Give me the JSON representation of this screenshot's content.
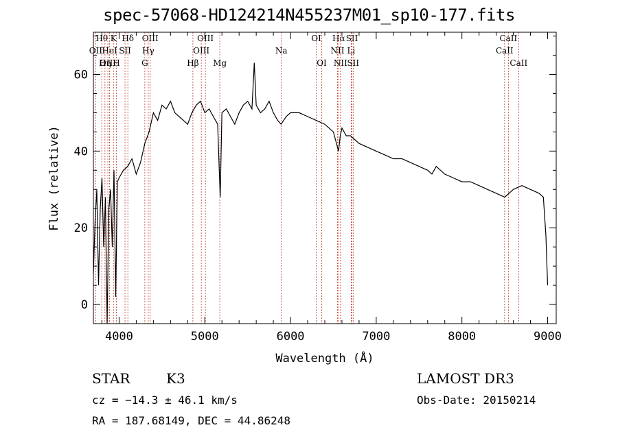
{
  "title": "spec-57068-HD124214N455237M01_sp10-177.fits",
  "info": {
    "object_class": "STAR",
    "subclass": "K3",
    "survey": "LAMOST DR3",
    "redshift": "cz = −14.3 ± 46.1 km/s",
    "obs_date": "Obs-Date: 20150214",
    "coords": "RA = 187.68149, DEC =  44.86248"
  },
  "chart_data": {
    "type": "line",
    "title": "spec-57068-HD124214N455237M01_sp10-177.fits",
    "xlabel": "Wavelength (Å)",
    "ylabel": "Flux (relative)",
    "xlim": [
      3700,
      9100
    ],
    "ylim": [
      -5,
      71
    ],
    "xticks": [
      4000,
      5000,
      6000,
      7000,
      8000,
      9000
    ],
    "yticks": [
      0,
      20,
      40,
      60
    ],
    "grid": false,
    "series": [
      {
        "x": [
          3700,
          3720,
          3740,
          3760,
          3780,
          3800,
          3820,
          3840,
          3860,
          3880,
          3900,
          3920,
          3940,
          3960,
          3980,
          4000,
          4050,
          4100,
          4150,
          4200,
          4250,
          4300,
          4350,
          4400,
          4450,
          4500,
          4550,
          4600,
          4650,
          4700,
          4750,
          4800,
          4850,
          4900,
          4950,
          5000,
          5050,
          5100,
          5150,
          5180,
          5200,
          5250,
          5300,
          5350,
          5400,
          5450,
          5500,
          5550,
          5577,
          5600,
          5650,
          5700,
          5750,
          5800,
          5850,
          5890,
          5950,
          6000,
          6100,
          6200,
          6300,
          6400,
          6500,
          6560,
          6580,
          6600,
          6650,
          6700,
          6800,
          6900,
          7000,
          7100,
          7200,
          7300,
          7400,
          7500,
          7600,
          7650,
          7700,
          7800,
          7900,
          8000,
          8100,
          8200,
          8300,
          8400,
          8500,
          8600,
          8700,
          8800,
          8900,
          8950,
          8980,
          9000
        ],
        "y": [
          8,
          22,
          30,
          5,
          25,
          33,
          15,
          28,
          -5,
          25,
          30,
          15,
          35,
          2,
          32,
          33,
          35,
          36,
          38,
          34,
          37,
          42,
          45,
          50,
          48,
          52,
          51,
          53,
          50,
          49,
          48,
          47,
          50,
          52,
          53,
          50,
          51,
          49,
          47,
          28,
          50,
          51,
          49,
          47,
          50,
          52,
          53,
          51,
          63,
          52,
          50,
          51,
          53,
          50,
          48,
          47,
          49,
          50,
          50,
          49,
          48,
          47,
          45,
          40,
          44,
          46,
          44,
          44,
          42,
          41,
          40,
          39,
          38,
          38,
          37,
          36,
          35,
          34,
          36,
          34,
          33,
          32,
          32,
          31,
          30,
          29,
          28,
          30,
          31,
          30,
          29,
          28,
          18,
          5
        ]
      }
    ],
    "lines": [
      {
        "label": "Hθ",
        "x": 3798,
        "row": 0
      },
      {
        "label": "K",
        "x": 3934,
        "row": 0
      },
      {
        "label": "Hδ",
        "x": 4102,
        "row": 0
      },
      {
        "label": "OIII",
        "x": 4363,
        "row": 0
      },
      {
        "label": "OIII",
        "x": 5007,
        "row": 0
      },
      {
        "label": "OI",
        "x": 6300,
        "row": 0
      },
      {
        "label": "Hα",
        "x": 6563,
        "row": 0
      },
      {
        "label": "SII",
        "x": 6717,
        "row": 0
      },
      {
        "label": "CaII",
        "x": 8542,
        "row": 0
      },
      {
        "label": "OII",
        "x": 3727,
        "row": 1
      },
      {
        "label": "HeI",
        "x": 3889,
        "row": 1
      },
      {
        "label": "SII",
        "x": 4069,
        "row": 1
      },
      {
        "label": "Hγ",
        "x": 4340,
        "row": 1
      },
      {
        "label": "OIII",
        "x": 4959,
        "row": 1
      },
      {
        "label": "Na",
        "x": 5893,
        "row": 1
      },
      {
        "label": "NII",
        "x": 6548,
        "row": 1
      },
      {
        "label": "Li",
        "x": 6708,
        "row": 1
      },
      {
        "label": "CaII",
        "x": 8498,
        "row": 1
      },
      {
        "label": "OIII",
        "x": 3869,
        "row": 2
      },
      {
        "label": "Hη",
        "x": 3835,
        "row": 2
      },
      {
        "label": "H",
        "x": 3968,
        "row": 2
      },
      {
        "label": "G",
        "x": 4300,
        "row": 2
      },
      {
        "label": "Hβ",
        "x": 4861,
        "row": 2
      },
      {
        "label": "Mg",
        "x": 5175,
        "row": 2
      },
      {
        "label": "OI",
        "x": 6364,
        "row": 2
      },
      {
        "label": "NII",
        "x": 6583,
        "row": 2
      },
      {
        "label": "SII",
        "x": 6731,
        "row": 2
      },
      {
        "label": "CaII",
        "x": 8662,
        "row": 2
      }
    ]
  }
}
